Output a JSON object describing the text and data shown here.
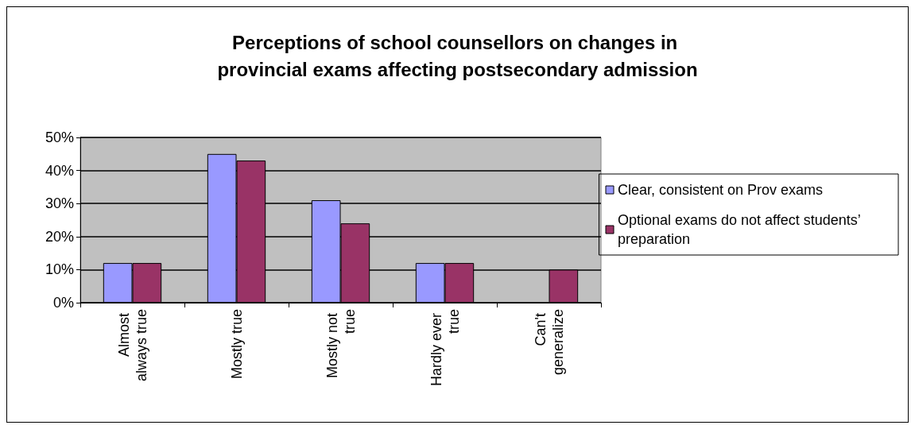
{
  "chart_data": {
    "type": "bar",
    "title": "Perceptions of school counsellors on changes in provincial exams affecting postsecondary admission",
    "categories": [
      "Almost always true",
      "Mostly true",
      "Mostly not true",
      "Hardly ever true",
      "Can't generalize"
    ],
    "series": [
      {
        "name": "Clear, consistent on Prov exams",
        "color": "#9999ff",
        "values": [
          12,
          45,
          31,
          12,
          null
        ]
      },
      {
        "name": "Optional exams do not affect students’ preparation",
        "color": "#993366",
        "values": [
          12,
          43,
          24,
          12,
          10
        ]
      }
    ],
    "ylim": [
      0,
      50
    ],
    "yticks": [
      {
        "value": 0,
        "label": "0%"
      },
      {
        "value": 10,
        "label": "10%"
      },
      {
        "value": 20,
        "label": "20%"
      },
      {
        "value": 30,
        "label": "30%"
      },
      {
        "value": 40,
        "label": "40%"
      },
      {
        "value": 50,
        "label": "50%"
      }
    ],
    "grid": "y",
    "legend": "right"
  }
}
